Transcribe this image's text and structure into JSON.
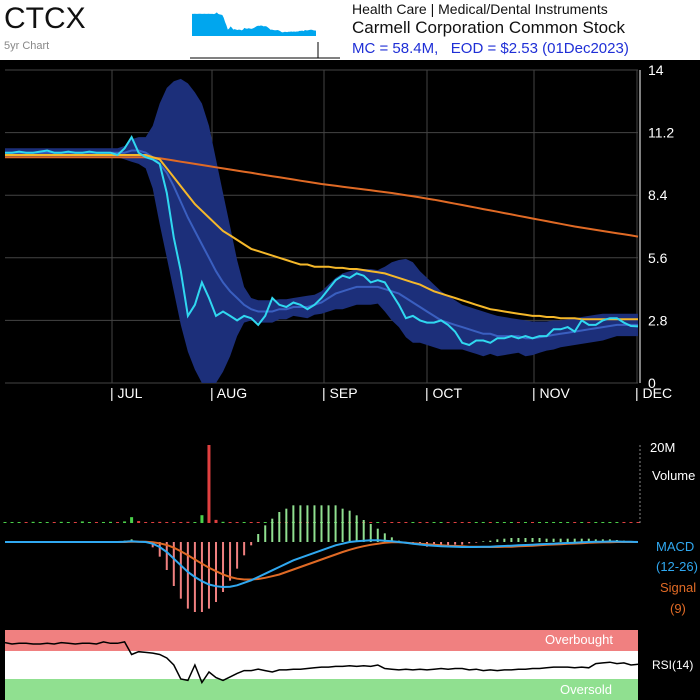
{
  "header": {
    "ticker": "CTCX",
    "chart_label": "5yr Chart",
    "sector": "Health Care | Medical/Dental Instruments",
    "company": "Carmell Corporation Common Stock",
    "mc_label": "MC = 58.4M,",
    "eod_label": "EOD = $2.53 (01Dec2023)"
  },
  "colors": {
    "background": "#000000",
    "price": "#30d8f0",
    "ma_fast": "#f5b82a",
    "ma_slow": "#e06a25",
    "band_fill": "#1c2f7a",
    "band_mid": "#3a5fc0",
    "volume_up": "#4ad04a",
    "volume_down": "#e04040",
    "macd": "#30a8f0",
    "signal": "#e06a25",
    "hist_pos": "#90e090",
    "hist_neg": "#f08080",
    "rsi_over": "#f08080",
    "rsi_under": "#90e090",
    "axis_text": "#ffffff",
    "label_blue": "#1f2fd6",
    "label_orange": "#d9531e"
  },
  "chart_data": [
    {
      "type": "line",
      "name": "price",
      "x_ticks": [
        "| JUL",
        "| AUG",
        "| SEP",
        "| OCT",
        "| NOV",
        "| DEC"
      ],
      "y_ticks": [
        "14",
        "11.2",
        "8.4",
        "5.6",
        "2.8",
        "0"
      ],
      "ylim": [
        0,
        14
      ],
      "series": [
        {
          "values": [
            10.3,
            10.3,
            10.35,
            10.3,
            10.3,
            10.35,
            10.4,
            10.3,
            10.3,
            10.35,
            10.3,
            10.3,
            10.35,
            10.3,
            10.3,
            10.3,
            10.2,
            10.5,
            11.0,
            10.3,
            10.1,
            10.0,
            9.8,
            8.5,
            6.5,
            5.0,
            3.0,
            3.5,
            4.5,
            3.8,
            3.0,
            3.2,
            3.0,
            2.8,
            3.0,
            2.9,
            2.6,
            3.0,
            3.8,
            3.5,
            3.4,
            3.6,
            3.5,
            3.3,
            3.5,
            3.8,
            4.2,
            4.6,
            4.8,
            4.7,
            4.9,
            4.8,
            4.5,
            4.6,
            4.5,
            4.0,
            3.5,
            2.9,
            3.0,
            2.8,
            2.7,
            2.7,
            2.8,
            2.6,
            2.3,
            1.8,
            1.7,
            1.9,
            1.9,
            1.8,
            2.0,
            2.0,
            2.1,
            2.0,
            2.1,
            2.0,
            2.1,
            2.1,
            2.4,
            2.4,
            2.5,
            2.3,
            2.8,
            2.6,
            2.6,
            2.8,
            2.9,
            2.9,
            2.7,
            2.55,
            2.53
          ]
        },
        {
          "values": [
            10.2,
            10.2,
            10.2,
            10.2,
            10.2,
            10.2,
            10.2,
            10.2,
            10.2,
            10.2,
            10.2,
            10.2,
            10.2,
            10.2,
            10.2,
            10.2,
            10.2,
            10.2,
            10.2,
            10.2,
            10.2,
            10.1,
            10.0,
            9.6,
            9.2,
            8.8,
            8.4,
            8.0,
            7.7,
            7.4,
            7.1,
            6.8,
            6.6,
            6.4,
            6.2,
            6.0,
            5.9,
            5.8,
            5.7,
            5.6,
            5.5,
            5.4,
            5.3,
            5.3,
            5.2,
            5.2,
            5.2,
            5.15,
            5.15,
            5.1,
            5.1,
            5.05,
            5.0,
            4.95,
            4.9,
            4.8,
            4.7,
            4.6,
            4.5,
            4.4,
            4.25,
            4.1,
            4.0,
            3.9,
            3.8,
            3.7,
            3.6,
            3.5,
            3.4,
            3.3,
            3.25,
            3.2,
            3.15,
            3.1,
            3.05,
            3.0,
            3.0,
            2.95,
            2.95,
            2.9,
            2.9,
            2.9,
            2.85,
            2.85,
            2.85,
            2.85,
            2.85,
            2.85,
            2.85,
            2.85,
            2.85
          ]
        },
        {
          "values": [
            10.1,
            10.1,
            10.1,
            10.1,
            10.1,
            10.1,
            10.1,
            10.1,
            10.1,
            10.1,
            10.1,
            10.1,
            10.1,
            10.1,
            10.1,
            10.1,
            10.1,
            10.1,
            10.1,
            10.1,
            10.1,
            10.08,
            10.05,
            10.0,
            9.95,
            9.9,
            9.85,
            9.8,
            9.75,
            9.7,
            9.65,
            9.6,
            9.55,
            9.5,
            9.45,
            9.4,
            9.35,
            9.3,
            9.25,
            9.2,
            9.15,
            9.1,
            9.05,
            9.0,
            8.95,
            8.9,
            8.86,
            8.82,
            8.78,
            8.74,
            8.7,
            8.66,
            8.62,
            8.58,
            8.54,
            8.5,
            8.45,
            8.4,
            8.35,
            8.3,
            8.25,
            8.2,
            8.14,
            8.08,
            8.02,
            7.96,
            7.9,
            7.84,
            7.78,
            7.72,
            7.66,
            7.6,
            7.54,
            7.48,
            7.42,
            7.36,
            7.3,
            7.24,
            7.18,
            7.12,
            7.06,
            7.0,
            6.95,
            6.9,
            6.85,
            6.8,
            6.75,
            6.7,
            6.65,
            6.6,
            6.55
          ]
        },
        {
          "values": [
            10.3,
            10.3,
            10.3,
            10.3,
            10.3,
            10.3,
            10.3,
            10.3,
            10.3,
            10.3,
            10.3,
            10.3,
            10.3,
            10.3,
            10.3,
            10.3,
            10.3,
            10.3,
            10.4,
            10.4,
            10.3,
            10.1,
            9.8,
            9.4,
            8.8,
            8.1,
            7.4,
            6.8,
            6.2,
            5.6,
            5.0,
            4.5,
            4.1,
            3.8,
            3.5,
            3.3,
            3.2,
            3.2,
            3.2,
            3.3,
            3.3,
            3.4,
            3.4,
            3.4,
            3.5,
            3.6,
            3.8,
            4.0,
            4.1,
            4.2,
            4.3,
            4.3,
            4.3,
            4.3,
            4.2,
            4.1,
            4.0,
            3.8,
            3.6,
            3.4,
            3.2,
            3.0,
            2.8,
            2.7,
            2.6,
            2.5,
            2.4,
            2.3,
            2.2,
            2.2,
            2.1,
            2.1,
            2.1,
            2.1,
            2.0,
            2.0,
            2.05,
            2.1,
            2.15,
            2.2,
            2.25,
            2.3,
            2.35,
            2.4,
            2.45,
            2.5,
            2.55,
            2.6,
            2.6,
            2.6,
            2.6
          ]
        },
        {
          "values": [
            10.5,
            10.5,
            10.5,
            10.5,
            10.5,
            10.5,
            10.5,
            10.5,
            10.5,
            10.5,
            10.5,
            10.5,
            10.5,
            10.5,
            10.5,
            10.5,
            10.5,
            10.6,
            10.9,
            11.0,
            11.0,
            11.5,
            12.5,
            13.2,
            13.5,
            13.6,
            13.4,
            13.0,
            12.5,
            11.5,
            10.0,
            8.5,
            7.0,
            5.5,
            4.3,
            3.8,
            3.7,
            3.7,
            3.7,
            3.75,
            3.75,
            3.8,
            3.85,
            3.9,
            3.95,
            4.1,
            4.4,
            4.7,
            4.9,
            5.0,
            5.1,
            5.1,
            5.1,
            5.05,
            5.2,
            5.4,
            5.5,
            5.55,
            5.4,
            5.0,
            4.7,
            4.4,
            4.1,
            3.9,
            3.7,
            3.5,
            3.4,
            3.3,
            3.2,
            3.1,
            3.0,
            2.95,
            2.9,
            2.85,
            2.8,
            2.75,
            2.75,
            2.75,
            2.8,
            2.8,
            2.85,
            2.9,
            2.95,
            3.0,
            3.05,
            3.1,
            3.1,
            3.1,
            3.1,
            3.1,
            3.1
          ]
        },
        {
          "values": [
            10.1,
            10.1,
            10.1,
            10.1,
            10.1,
            10.1,
            10.1,
            10.1,
            10.1,
            10.1,
            10.1,
            10.1,
            10.1,
            10.1,
            10.1,
            10.1,
            10.1,
            10.0,
            9.9,
            9.8,
            9.6,
            8.7,
            7.1,
            5.6,
            4.1,
            2.6,
            1.4,
            0.6,
            0.0,
            0.0,
            0.0,
            0.5,
            1.2,
            2.1,
            2.7,
            2.8,
            2.7,
            2.7,
            2.7,
            2.85,
            2.85,
            3.0,
            2.95,
            2.9,
            3.05,
            3.1,
            3.2,
            3.3,
            3.3,
            3.4,
            3.5,
            3.5,
            3.5,
            3.55,
            3.2,
            2.8,
            2.5,
            2.05,
            1.8,
            1.8,
            1.7,
            1.6,
            1.5,
            1.5,
            1.5,
            1.5,
            1.4,
            1.3,
            1.2,
            1.3,
            1.2,
            1.25,
            1.3,
            1.35,
            1.2,
            1.25,
            1.35,
            1.45,
            1.5,
            1.6,
            1.65,
            1.7,
            1.75,
            1.8,
            1.85,
            1.9,
            2.0,
            2.1,
            2.1,
            2.1,
            2.1
          ]
        }
      ]
    },
    {
      "type": "bar",
      "name": "volume",
      "ylabel": "Volume",
      "y_ticks": [
        "20M"
      ],
      "ylim": [
        0,
        20
      ],
      "values": [
        0.2,
        0.2,
        0.2,
        0.1,
        0.3,
        0.2,
        0.1,
        0.2,
        0.3,
        0.1,
        0.2,
        0.4,
        0.2,
        0.1,
        0.2,
        0.3,
        0.2,
        0.4,
        1.5,
        0.5,
        0.2,
        0.2,
        0.3,
        0.2,
        0.1,
        0.2,
        0.3,
        0.2,
        2.0,
        20.0,
        0.8,
        0.3,
        0.2,
        0.2,
        0.2,
        0.2,
        0.1,
        0.2,
        0.2,
        0.1,
        0.2,
        0.3,
        0.2,
        0.1,
        0.2,
        0.2,
        0.2,
        0.2,
        0.2,
        0.1,
        0.2,
        0.2,
        0.2,
        0.2,
        0.1,
        0.2,
        0.2,
        0.1,
        0.2,
        0.2,
        0.2,
        0.2,
        0.1,
        0.2,
        0.2,
        0.2,
        0.1,
        0.2,
        0.2,
        0.1,
        0.2,
        0.2,
        0.1,
        0.2,
        0.1,
        0.2,
        0.2,
        0.1,
        0.2,
        0.2,
        0.1,
        0.2,
        0.2,
        0.2,
        0.1,
        0.2,
        0.2,
        0.1,
        0.2,
        0.2,
        0.1
      ]
    },
    {
      "type": "line",
      "name": "macd",
      "legend": {
        "macd": "MACD",
        "macd_params": "(12-26)",
        "signal": "Signal",
        "signal_params": "(9)"
      },
      "series": [
        {
          "values": [
            0,
            0,
            0,
            0,
            0,
            0,
            0,
            0,
            0,
            0,
            0,
            0,
            0,
            0,
            0,
            0,
            0,
            0.02,
            0.05,
            0.02,
            0,
            -0.1,
            -0.3,
            -0.6,
            -1.0,
            -1.4,
            -1.8,
            -2.1,
            -2.35,
            -2.55,
            -2.65,
            -2.7,
            -2.68,
            -2.6,
            -2.45,
            -2.3,
            -2.1,
            -1.9,
            -1.7,
            -1.5,
            -1.3,
            -1.1,
            -0.95,
            -0.8,
            -0.65,
            -0.5,
            -0.35,
            -0.2,
            -0.1,
            0.0,
            0.05,
            0.08,
            0.1,
            0.1,
            0.08,
            0.05,
            0.0,
            -0.05,
            -0.1,
            -0.15,
            -0.2,
            -0.22,
            -0.25,
            -0.27,
            -0.28,
            -0.3,
            -0.3,
            -0.3,
            -0.29,
            -0.28,
            -0.26,
            -0.24,
            -0.22,
            -0.2,
            -0.18,
            -0.16,
            -0.14,
            -0.12,
            -0.1,
            -0.08,
            -0.06,
            -0.04,
            -0.02,
            0.0,
            0.01,
            0.02,
            0.03,
            0.03,
            0.02,
            0.01,
            0.0
          ]
        },
        {
          "values": [
            0,
            0,
            0,
            0,
            0,
            0,
            0,
            0,
            0,
            0,
            0,
            0,
            0,
            0,
            0,
            0,
            0,
            0,
            0.01,
            0.01,
            0.01,
            -0.02,
            -0.08,
            -0.18,
            -0.34,
            -0.55,
            -0.8,
            -1.05,
            -1.3,
            -1.55,
            -1.75,
            -1.95,
            -2.1,
            -2.2,
            -2.25,
            -2.25,
            -2.22,
            -2.15,
            -2.05,
            -1.95,
            -1.8,
            -1.65,
            -1.5,
            -1.35,
            -1.2,
            -1.05,
            -0.9,
            -0.75,
            -0.6,
            -0.47,
            -0.35,
            -0.25,
            -0.17,
            -0.1,
            -0.05,
            -0.02,
            -0.02,
            -0.04,
            -0.07,
            -0.1,
            -0.13,
            -0.16,
            -0.19,
            -0.22,
            -0.24,
            -0.26,
            -0.28,
            -0.29,
            -0.3,
            -0.3,
            -0.3,
            -0.29,
            -0.28,
            -0.26,
            -0.24,
            -0.22,
            -0.2,
            -0.17,
            -0.15,
            -0.13,
            -0.11,
            -0.09,
            -0.07,
            -0.05,
            -0.03,
            -0.02,
            -0.01,
            0.0,
            0.0,
            0.0,
            0.0
          ]
        }
      ]
    },
    {
      "type": "line",
      "name": "rsi",
      "legend": "RSI(14)",
      "bands": {
        "overbought": "Overbought",
        "oversold": "Oversold"
      },
      "ylim": [
        0,
        100
      ],
      "values": [
        82,
        80,
        81,
        81,
        80,
        80,
        81,
        80,
        82,
        81,
        80,
        81,
        81,
        80,
        83,
        81,
        81,
        83,
        65,
        69,
        68,
        67,
        65,
        60,
        50,
        30,
        28,
        50,
        25,
        40,
        32,
        28,
        33,
        38,
        42,
        42,
        44,
        42,
        40,
        43,
        43,
        44,
        44,
        45,
        46,
        47,
        47,
        48,
        48,
        49,
        48,
        49,
        48,
        50,
        45,
        44,
        43,
        44,
        43,
        44,
        43,
        44,
        45,
        44,
        45,
        45,
        43,
        44,
        42,
        43,
        42,
        43,
        43,
        44,
        44,
        45,
        45,
        46,
        47,
        47,
        47,
        46,
        47,
        46,
        52,
        53,
        54,
        52,
        53,
        50,
        51
      ]
    }
  ]
}
